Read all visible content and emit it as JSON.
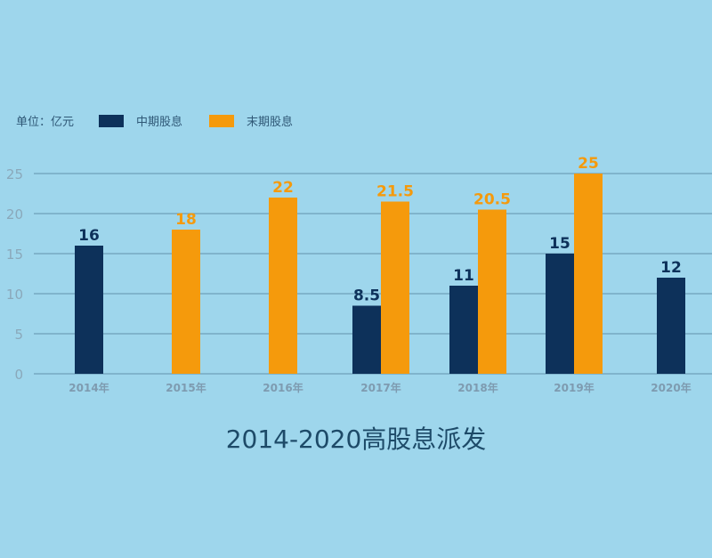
{
  "legend": {
    "unit_label": "单位：亿元",
    "series": [
      {
        "name": "中期股息",
        "color": "#0d315a"
      },
      {
        "name": "末期股息",
        "color": "#f59a0c"
      }
    ]
  },
  "title": "2014-2020高股息派发",
  "chart_data": {
    "type": "bar",
    "title": "2014-2020高股息派发",
    "xlabel": "",
    "ylabel": "单位：亿元",
    "ylim": [
      0,
      25
    ],
    "yticks": [
      0,
      5,
      10,
      15,
      20,
      25
    ],
    "grid": true,
    "legend_position": "top-left",
    "categories": [
      "2014年",
      "2015年",
      "2016年",
      "2017年",
      "2018年",
      "2019年",
      "2020年"
    ],
    "series": [
      {
        "name": "中期股息",
        "color": "#0d315a",
        "values": [
          16,
          null,
          null,
          8.5,
          11,
          15,
          12
        ]
      },
      {
        "name": "末期股息",
        "color": "#f59a0c",
        "values": [
          null,
          18,
          22,
          21.5,
          20.5,
          25,
          null
        ]
      }
    ]
  }
}
